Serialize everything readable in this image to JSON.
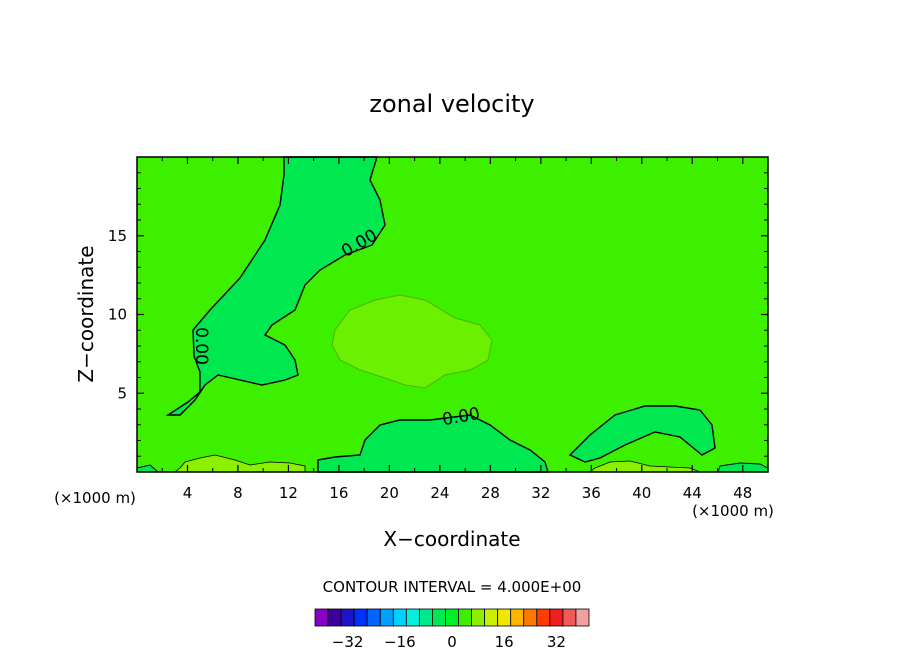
{
  "chart_data": {
    "type": "contour",
    "title": "zonal velocity",
    "xlabel": "X−coordinate",
    "ylabel": "Z−coordinate",
    "x_unit_left": "(×1000 m)",
    "x_unit_right": "(×1000 m)",
    "xlim": [
      0,
      50
    ],
    "ylim": [
      0,
      20
    ],
    "xticks": [
      4,
      8,
      12,
      16,
      20,
      24,
      28,
      32,
      36,
      40,
      44,
      48
    ],
    "yticks": [
      5,
      10,
      15
    ],
    "contour_interval_text": "CONTOUR INTERVAL = 4.000E+00",
    "contour_label": "0.00",
    "colorbar": {
      "colors": [
        "#8a00c8",
        "#3c00a0",
        "#1e14c8",
        "#0032ff",
        "#0064ff",
        "#00a0ff",
        "#00d2ff",
        "#00f0dc",
        "#00e88c",
        "#00e850",
        "#00f028",
        "#3cf000",
        "#8cf000",
        "#c8f000",
        "#f0e600",
        "#ffb400",
        "#ff7800",
        "#ff3c00",
        "#f01e1e",
        "#f05a5a",
        "#f0a0a0"
      ],
      "tick_labels": [
        "−32",
        "−16",
        "0",
        "16",
        "32"
      ],
      "tick_values": [
        -32,
        -16,
        0,
        16,
        32
      ]
    },
    "fill_colors": {
      "background": "#3cf000",
      "negative_region": "#00e850",
      "positive_region": "#6af000",
      "strong_positive": "#8cf000"
    }
  }
}
